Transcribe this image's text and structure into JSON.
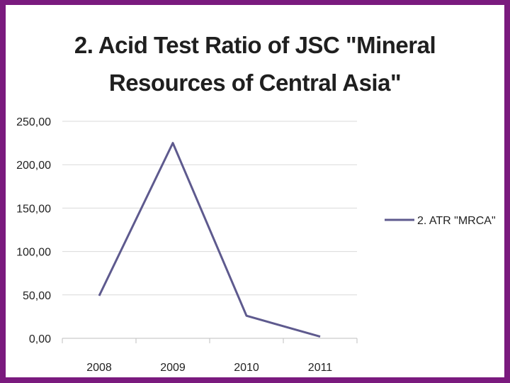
{
  "chart_data": {
    "type": "line",
    "title_lines": [
      "2. Acid Test Ratio of JSC \"Mineral",
      "Resources of Central Asia\""
    ],
    "categories": [
      "2008",
      "2009",
      "2010",
      "2011"
    ],
    "series": [
      {
        "name": "2. ATR \"MRCA\"",
        "values": [
          49,
          225,
          26,
          2
        ],
        "color": "#5e5a8e"
      }
    ],
    "y_ticks": [
      "0,00",
      "50,00",
      "100,00",
      "150,00",
      "200,00",
      "250,00"
    ],
    "ylim": [
      0,
      250
    ],
    "y_step": 50,
    "grid": true,
    "legend": "right"
  }
}
